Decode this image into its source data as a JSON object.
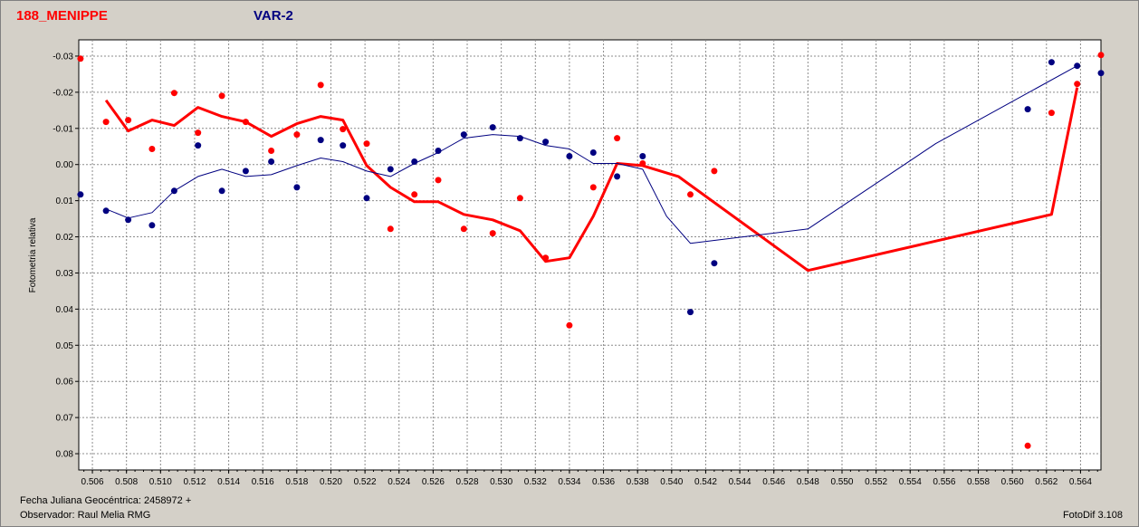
{
  "header": {
    "object_name": "188_MENIPPE",
    "variable_label": "VAR-2"
  },
  "footer": {
    "jd_label": "Fecha Juliana Geocéntrica: 2458972 +",
    "observer_label": "Observador: Raul Melia RMG",
    "software_label": "FotoDif 3.108"
  },
  "colors": {
    "red_series": "#ff0000",
    "blue_series": "#000080",
    "background": "#d4d0c8",
    "plot_bg": "#ffffff",
    "grid": "#808080"
  },
  "chart_data": {
    "type": "scatter",
    "title": "",
    "xlabel": "",
    "ylabel": "Fotometria relativa",
    "xlim": [
      0.5052,
      0.5652
    ],
    "ylim": [
      0.0845,
      -0.0345
    ],
    "y_inverted": true,
    "grid": true,
    "x_ticks": [
      0.506,
      0.508,
      0.51,
      0.512,
      0.514,
      0.516,
      0.518,
      0.52,
      0.522,
      0.524,
      0.526,
      0.528,
      0.53,
      0.532,
      0.534,
      0.536,
      0.538,
      0.54,
      0.542,
      0.544,
      0.546,
      0.548,
      0.55,
      0.552,
      0.554,
      0.556,
      0.558,
      0.56,
      0.562,
      0.564
    ],
    "x_tick_labels": [
      "0.506",
      "0.508",
      "0.510",
      "0.512",
      "0.514",
      "0.516",
      "0.518",
      "0.520",
      "0.522",
      "0.524",
      "0.526",
      "0.528",
      "0.530",
      "0.532",
      "0.534",
      "0.536",
      "0.538",
      "0.540",
      "0.542",
      "0.544",
      "0.546",
      "0.548",
      "0.550",
      "0.552",
      "0.554",
      "0.556",
      "0.558",
      "0.560",
      "0.562",
      "0.564"
    ],
    "y_ticks": [
      -0.03,
      -0.02,
      -0.01,
      0.0,
      0.01,
      0.02,
      0.03,
      0.04,
      0.05,
      0.06,
      0.07,
      0.08
    ],
    "y_tick_labels": [
      "-0.03",
      "-0.02",
      "-0.01",
      "0.00",
      "0.01",
      "0.02",
      "0.03",
      "0.04",
      "0.05",
      "0.06",
      "0.07",
      "0.08"
    ],
    "series": [
      {
        "color": "#ff0000",
        "points": [
          [
            0.5053,
            -0.0293
          ],
          [
            0.5068,
            -0.0118
          ],
          [
            0.5081,
            -0.0123
          ],
          [
            0.5095,
            -0.0043
          ],
          [
            0.5108,
            -0.0198
          ],
          [
            0.5122,
            -0.0088
          ],
          [
            0.5136,
            -0.019
          ],
          [
            0.515,
            -0.0118
          ],
          [
            0.5165,
            -0.0038
          ],
          [
            0.518,
            -0.0083
          ],
          [
            0.5194,
            -0.022
          ],
          [
            0.5207,
            -0.0098
          ],
          [
            0.5221,
            -0.0058
          ],
          [
            0.5235,
            0.0178
          ],
          [
            0.5249,
            0.0083
          ],
          [
            0.5263,
            0.0043
          ],
          [
            0.5278,
            0.0178
          ],
          [
            0.5295,
            0.019
          ],
          [
            0.5311,
            0.0093
          ],
          [
            0.5326,
            0.0258
          ],
          [
            0.534,
            0.0445
          ],
          [
            0.5354,
            0.0063
          ],
          [
            0.5368,
            -0.0073
          ],
          [
            0.5383,
            -0.0003
          ],
          [
            0.5411,
            0.0083
          ],
          [
            0.5425,
            0.0018
          ],
          [
            0.5609,
            0.0778
          ],
          [
            0.5623,
            -0.0143
          ],
          [
            0.5638,
            -0.0223
          ],
          [
            0.5652,
            -0.0303
          ]
        ],
        "fit": [
          [
            0.5068,
            -0.0178
          ],
          [
            0.5081,
            -0.0093
          ],
          [
            0.5095,
            -0.0123
          ],
          [
            0.5108,
            -0.0108
          ],
          [
            0.5122,
            -0.0158
          ],
          [
            0.5136,
            -0.0133
          ],
          [
            0.515,
            -0.0118
          ],
          [
            0.5165,
            -0.0078
          ],
          [
            0.518,
            -0.0113
          ],
          [
            0.5194,
            -0.0133
          ],
          [
            0.5207,
            -0.0123
          ],
          [
            0.5221,
            0.0003
          ],
          [
            0.5235,
            0.0063
          ],
          [
            0.5249,
            0.0103
          ],
          [
            0.5263,
            0.0103
          ],
          [
            0.5278,
            0.0138
          ],
          [
            0.5295,
            0.0153
          ],
          [
            0.5311,
            0.0183
          ],
          [
            0.5326,
            0.0268
          ],
          [
            0.534,
            0.0258
          ],
          [
            0.5354,
            0.0143
          ],
          [
            0.5368,
            -0.0003
          ],
          [
            0.5383,
            0.0003
          ],
          [
            0.5404,
            0.0033
          ],
          [
            0.548,
            0.0293
          ],
          [
            0.5623,
            0.0138
          ],
          [
            0.5638,
            -0.0213
          ]
        ]
      },
      {
        "color": "#000080",
        "points": [
          [
            0.5053,
            0.0083
          ],
          [
            0.5068,
            0.0128
          ],
          [
            0.5081,
            0.0153
          ],
          [
            0.5095,
            0.0168
          ],
          [
            0.5108,
            0.0073
          ],
          [
            0.5122,
            -0.0053
          ],
          [
            0.5136,
            0.0073
          ],
          [
            0.515,
            0.0018
          ],
          [
            0.5165,
            -0.0008
          ],
          [
            0.518,
            0.0063
          ],
          [
            0.5194,
            -0.0068
          ],
          [
            0.5207,
            -0.0053
          ],
          [
            0.5221,
            0.0093
          ],
          [
            0.5235,
            0.0013
          ],
          [
            0.5249,
            -0.0008
          ],
          [
            0.5263,
            -0.0038
          ],
          [
            0.5278,
            -0.0083
          ],
          [
            0.5295,
            -0.0103
          ],
          [
            0.5311,
            -0.0073
          ],
          [
            0.5326,
            -0.0063
          ],
          [
            0.534,
            -0.0023
          ],
          [
            0.5354,
            -0.0033
          ],
          [
            0.5368,
            0.0033
          ],
          [
            0.5383,
            -0.0023
          ],
          [
            0.5411,
            0.0408
          ],
          [
            0.5425,
            0.0273
          ],
          [
            0.5609,
            -0.0153
          ],
          [
            0.5623,
            -0.0283
          ],
          [
            0.5638,
            -0.0273
          ],
          [
            0.5652,
            -0.0253
          ]
        ],
        "fit": [
          [
            0.5068,
            0.0123
          ],
          [
            0.5081,
            0.0148
          ],
          [
            0.5095,
            0.0133
          ],
          [
            0.5108,
            0.0073
          ],
          [
            0.5122,
            0.0033
          ],
          [
            0.5136,
            0.0013
          ],
          [
            0.515,
            0.0033
          ],
          [
            0.5165,
            0.0028
          ],
          [
            0.518,
            0.0003
          ],
          [
            0.5194,
            -0.0018
          ],
          [
            0.5207,
            -0.0008
          ],
          [
            0.5221,
            0.0018
          ],
          [
            0.5235,
            0.0033
          ],
          [
            0.5249,
            -0.0003
          ],
          [
            0.5263,
            -0.0033
          ],
          [
            0.5278,
            -0.0073
          ],
          [
            0.5295,
            -0.0083
          ],
          [
            0.5311,
            -0.0078
          ],
          [
            0.5326,
            -0.0053
          ],
          [
            0.534,
            -0.0043
          ],
          [
            0.5354,
            -0.0003
          ],
          [
            0.5368,
            -0.0003
          ],
          [
            0.5383,
            0.0013
          ],
          [
            0.5397,
            0.0143
          ],
          [
            0.5411,
            0.0218
          ],
          [
            0.548,
            0.0178
          ],
          [
            0.5555,
            -0.0058
          ],
          [
            0.5638,
            -0.0273
          ]
        ]
      }
    ]
  }
}
